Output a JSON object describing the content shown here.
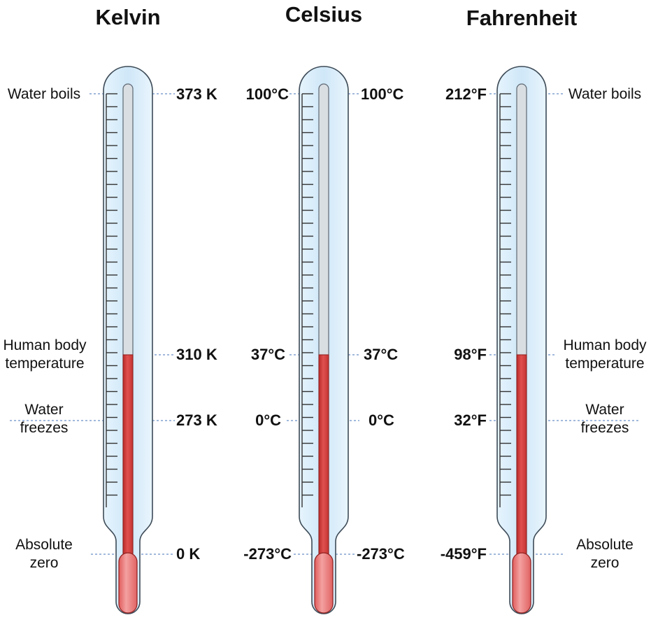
{
  "columns": [
    {
      "title": "Kelvin",
      "values": {
        "boils": "373 K",
        "body": "310 K",
        "freezes": "273 K",
        "zero": "0 K"
      }
    },
    {
      "title": "Celsius",
      "values_left": {
        "boils": "100°C",
        "body": "37°C",
        "freezes": "0°C",
        "zero": "-273°C"
      },
      "values_right": {
        "boils": "100°C",
        "body": "37°C",
        "freezes": "0°C",
        "zero": "-273°C"
      }
    },
    {
      "title": "Fahrenheit",
      "values": {
        "boils": "212°F",
        "body": "98°F",
        "freezes": "32°F",
        "zero": "-459°F"
      }
    }
  ],
  "reference_points": {
    "boils": [
      "Water boils"
    ],
    "body": [
      "Human body",
      "temperature"
    ],
    "freezes": [
      "Water",
      "freezes"
    ],
    "zero": [
      "Absolute",
      "zero"
    ]
  },
  "colors": {
    "glass": "#d4ebfb",
    "glass_edge": "#3d4b57",
    "capillary": "#d9dee3",
    "liquid": "#d9403e",
    "bulb": "#e9787a",
    "guide_line": "#6a8fc7"
  }
}
